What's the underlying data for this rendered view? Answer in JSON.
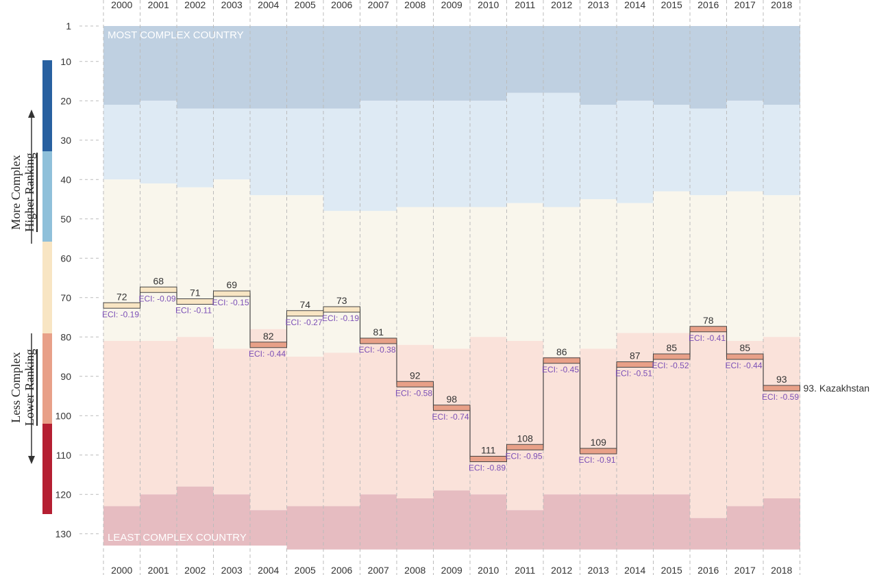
{
  "side_labels": {
    "top_line1": "More Complex",
    "top_line2": "Higher Ranking",
    "bottom_line1": "Less Complex",
    "bottom_line2": "Lower Ranking"
  },
  "colors": {
    "band_top": "#bfd0e1",
    "band_upper": "#deeaf4",
    "band_middle": "#f9f6ec",
    "band_lower": "#fae2da",
    "band_bottom": "#e6bcc1",
    "bar_dark_blue": "#2860a0",
    "bar_light_blue": "#8fc0da",
    "bar_cream": "#f8e5c3",
    "bar_salmon": "#e8a088",
    "bar_red": "#b51f32",
    "eci_text": "#7b4fb6",
    "step_line": "#444444",
    "grid": "#bbbbbb"
  },
  "chart_data": {
    "type": "line",
    "title": "",
    "xlabel": "",
    "ylabel": "",
    "y_axis": {
      "reversed": true,
      "range": [
        1,
        134
      ],
      "ticks": [
        1,
        10,
        20,
        30,
        40,
        50,
        60,
        70,
        80,
        90,
        100,
        110,
        120,
        130
      ]
    },
    "years": [
      "2000",
      "2001",
      "2002",
      "2003",
      "2004",
      "2005",
      "2006",
      "2007",
      "2008",
      "2009",
      "2010",
      "2011",
      "2012",
      "2013",
      "2014",
      "2015",
      "2016",
      "2017",
      "2018"
    ],
    "series": [
      {
        "name": "Kazakhstan",
        "ranks": [
          72,
          68,
          71,
          69,
          82,
          74,
          73,
          81,
          92,
          98,
          111,
          108,
          86,
          109,
          87,
          85,
          78,
          85,
          93
        ],
        "eci_labels": [
          "ECI: -0.19",
          "ECI: -0.09",
          "ECI: -0.11",
          "ECI: -0.15",
          "ECI: -0.44",
          "ECI: -0.27",
          "ECI: -0.19",
          "ECI: -0.38",
          "ECI: -0.58",
          "ECI: -0.74",
          "ECI: -0.89",
          "ECI: -0.95",
          "ECI: -0.45",
          "ECI: -0.91",
          "ECI: -0.51",
          "ECI: -0.52",
          "ECI: -0.41",
          "ECI: -0.44",
          "ECI: -0.59"
        ],
        "end_label": "93. Kazakhstan"
      }
    ],
    "band_boundaries": {
      "upper_start": [
        21,
        20,
        22,
        22,
        22,
        22,
        22,
        20,
        20,
        20,
        20,
        18,
        18,
        21,
        20,
        21,
        22,
        20,
        21
      ],
      "middle_start": [
        40,
        41,
        42,
        40,
        44,
        44,
        48,
        48,
        47,
        47,
        47,
        46,
        47,
        45,
        46,
        43,
        44,
        43,
        44
      ],
      "lower_start": [
        81,
        81,
        80,
        83,
        78,
        85,
        84,
        81,
        82,
        83,
        80,
        81,
        85,
        83,
        79,
        79,
        78,
        81,
        80
      ],
      "bottom_start": [
        123,
        120,
        118,
        120,
        124,
        123,
        123,
        120,
        121,
        119,
        120,
        124,
        120,
        120,
        120,
        120,
        126,
        123,
        121
      ],
      "country_count": [
        133,
        133,
        133,
        133,
        133,
        134,
        134,
        134,
        134,
        134,
        134,
        134,
        134,
        134,
        134,
        134,
        134,
        134,
        134
      ]
    },
    "annotations": {
      "top": "MOST COMPLEX COUNTRY",
      "bottom": "LEAST COMPLEX COUNTRY"
    },
    "grid": true
  }
}
